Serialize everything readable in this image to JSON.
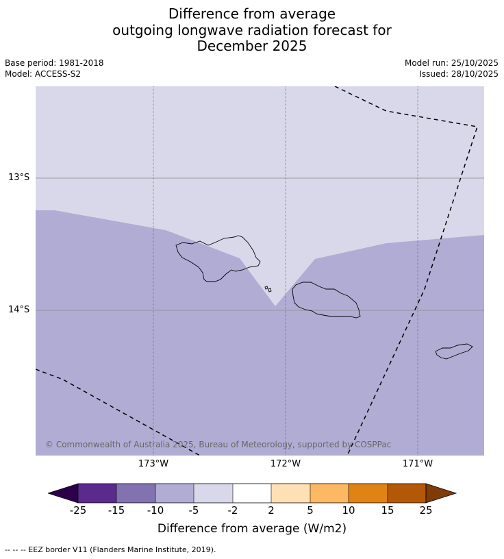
{
  "title": {
    "line1": "Difference from average",
    "line2": "outgoing longwave radiation forecast for",
    "line3": "December 2025"
  },
  "meta": {
    "base_period": "Base period: 1981-2018",
    "model": "Model: ACCESS-S2",
    "model_run": "Model run: 25/10/2025",
    "issued": "Issued: 28/10/2025"
  },
  "map": {
    "longitudes": [
      "173°W",
      "172°W",
      "171°W"
    ],
    "latitudes": [
      "13°S",
      "14°S"
    ],
    "copyright": "© Commonwealth of Australia 2025, Bureau of Meteorology, supported by COSPPac",
    "colors": {
      "light_lavender": "#d8d8ea",
      "lavender": "#b1acd3",
      "coast": "#000000",
      "eez": "#000000"
    }
  },
  "colorbar": {
    "labels": [
      "-25",
      "-15",
      "-10",
      "-5",
      "-2",
      "2",
      "5",
      "10",
      "15",
      "25"
    ],
    "colors": [
      "#2d004b",
      "#5a2a8c",
      "#8273b0",
      "#b1acd3",
      "#d8d8ea",
      "#ffffff",
      "#fee0b6",
      "#fdb863",
      "#e08214",
      "#b35806",
      "#7f3b08"
    ],
    "title": "Difference from average (W/m2)"
  },
  "footer": "--  --  -- EEZ border V11 (Flanders Marine Institute, 2019)."
}
